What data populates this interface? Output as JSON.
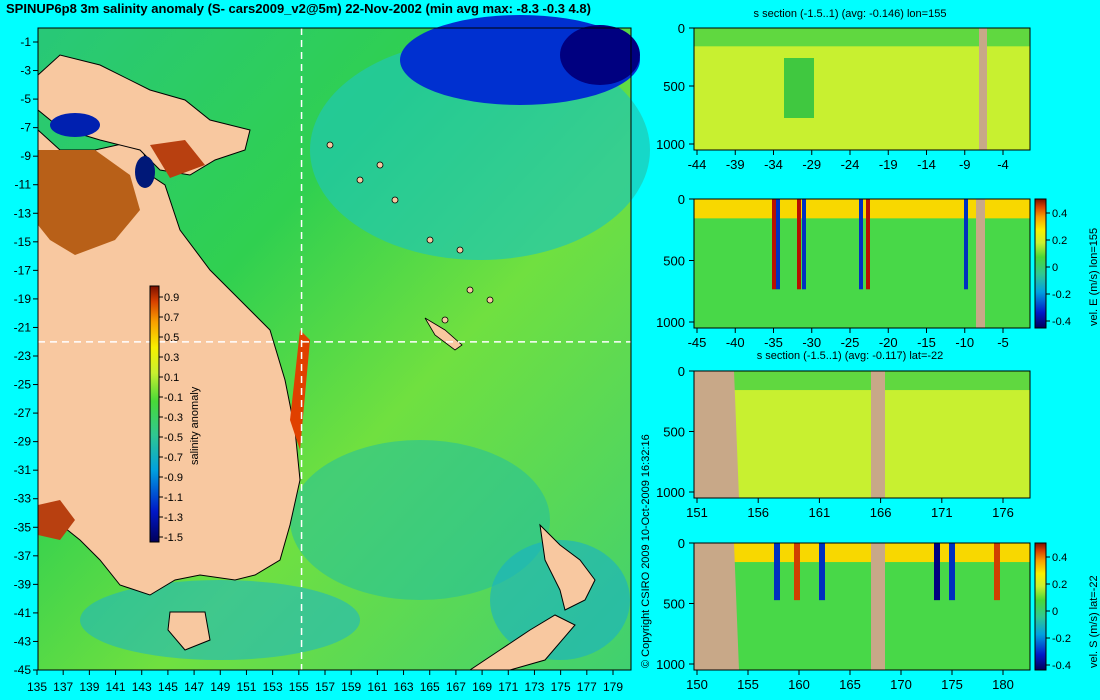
{
  "title": "SPINUP6p8 3m salinity anomaly (S- cars2009_v2@5m) 22-Nov-2002 (min avg max: -8.3 -0.3 4.8)",
  "copyright": "© Copyright CSIRO 2009  10-Oct-2009 16:32:16",
  "colors": {
    "background": "#00ffff",
    "land": "#f8c8a0",
    "seafloor": "#c8a888"
  },
  "chart_data": [
    {
      "type": "heatmap",
      "name": "map",
      "xticks": [
        "135",
        "137",
        "139",
        "141",
        "143",
        "145",
        "147",
        "149",
        "151",
        "153",
        "155",
        "157",
        "159",
        "161",
        "163",
        "165",
        "167",
        "169",
        "171",
        "173",
        "175",
        "177",
        "179"
      ],
      "yticks": [
        "-1",
        "-3",
        "-5",
        "-7",
        "-9",
        "-11",
        "-13",
        "-15",
        "-17",
        "-19",
        "-21",
        "-23",
        "-25",
        "-27",
        "-29",
        "-31",
        "-33",
        "-35",
        "-37",
        "-39",
        "-41",
        "-43",
        "-45"
      ],
      "xlim": [
        135,
        180
      ],
      "ylim": [
        -45,
        0
      ],
      "section_lon": 155,
      "section_lat": -22,
      "colorbar": {
        "label": "salinity anomaly",
        "ticks": [
          "0.9",
          "0.7",
          "0.5",
          "0.3",
          "0.1",
          "-0.1",
          "-0.3",
          "-0.5",
          "-0.7",
          "-0.9",
          "-1.1",
          "-1.3",
          "-1.5"
        ],
        "range": [
          -1.5,
          0.9
        ]
      }
    },
    {
      "type": "heatmap",
      "name": "panel1",
      "title": "s section (-1.5..1) (avg: -0.146) lon=155",
      "xticks": [
        "-44",
        "-39",
        "-34",
        "-29",
        "-24",
        "-19",
        "-14",
        "-9",
        "-4"
      ],
      "yticks": [
        "0",
        "500",
        "1000"
      ],
      "xlim": [
        -45,
        -1
      ],
      "ylim": [
        1050,
        0
      ]
    },
    {
      "type": "heatmap",
      "name": "panel2",
      "xticks": [
        "-45",
        "-40",
        "-35",
        "-30",
        "-25",
        "-20",
        "-15",
        "-10",
        "-5"
      ],
      "yticks": [
        "0",
        "500",
        "1000"
      ],
      "xlim": [
        -45,
        -1
      ],
      "ylim": [
        1050,
        0
      ],
      "colorbar": {
        "label": "vel. E (m/s) lon=155",
        "ticks": [
          "0.4",
          "0.2",
          "0",
          "-0.2",
          "-0.4"
        ],
        "range": [
          -0.4,
          0.5
        ]
      }
    },
    {
      "type": "heatmap",
      "name": "panel3",
      "title": "s section (-1.5..1) (avg: -0.117) lat=-22",
      "xticks": [
        "151",
        "156",
        "161",
        "166",
        "171",
        "176"
      ],
      "yticks": [
        "0",
        "500",
        "1000"
      ],
      "xlim": [
        150,
        180
      ],
      "ylim": [
        1050,
        0
      ]
    },
    {
      "type": "heatmap",
      "name": "panel4",
      "xticks": [
        "150",
        "155",
        "160",
        "165",
        "170",
        "175",
        "180"
      ],
      "yticks": [
        "0",
        "500",
        "1000"
      ],
      "xlim": [
        150,
        180
      ],
      "ylim": [
        1050,
        0
      ],
      "colorbar": {
        "label": "vel. S (m/s) lat=-22",
        "ticks": [
          "0.4",
          "0.2",
          "0",
          "-0.2",
          "-0.4"
        ],
        "range": [
          -0.4,
          0.5
        ]
      }
    }
  ]
}
